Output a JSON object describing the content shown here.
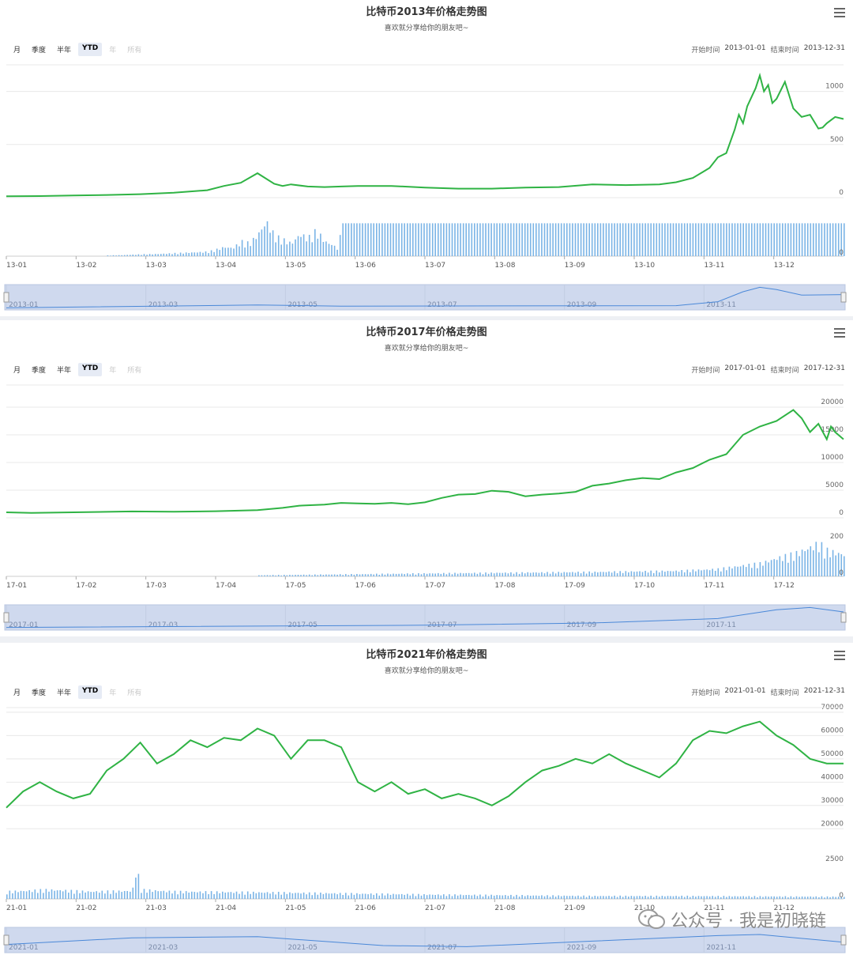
{
  "watermark": "公众号 · 我是初晓链",
  "colors": {
    "price": "#2fb344",
    "volume": "#7ab4e6",
    "navigator_fill": "#cfd9ee",
    "navigator_line": "#4a88d8",
    "grid": "#e8e8e8"
  },
  "panels": [
    {
      "title": "比特币2013年价格走势图",
      "subtitle": "喜欢就分享给你的朋友吧~",
      "range_buttons": [
        "月",
        "季度",
        "半年",
        "YTD",
        "年",
        "所有"
      ],
      "selected_range": "YTD",
      "start_label": "开始时间",
      "start_value": "2013-01-01",
      "end_label": "结束时间",
      "end_value": "2013-12-31",
      "menu_icon": "hamburger-menu-icon",
      "chart_data": {
        "type": "line",
        "title": "比特币2013年价格走势图",
        "x_ticks": [
          "13-01",
          "13-02",
          "13-03",
          "13-04",
          "13-05",
          "13-06",
          "13-07",
          "13-08",
          "13-09",
          "13-10",
          "13-11",
          "13-12"
        ],
        "navigator_ticks": [
          "2013-01",
          "2013-03",
          "2013-05",
          "2013-07",
          "2013-09",
          "2013-11"
        ],
        "price_ticks": [
          "0",
          "500",
          "1000"
        ],
        "price_ylim": [
          0,
          1250
        ],
        "volume_ticks": [
          "0"
        ],
        "price": {
          "t": [
            0,
            0.04,
            0.08,
            0.12,
            0.16,
            0.2,
            0.24,
            0.26,
            0.28,
            0.3,
            0.32,
            0.33,
            0.34,
            0.36,
            0.38,
            0.4,
            0.42,
            0.46,
            0.5,
            0.54,
            0.58,
            0.62,
            0.66,
            0.7,
            0.74,
            0.78,
            0.8,
            0.82,
            0.84,
            0.85,
            0.86,
            0.87,
            0.875,
            0.88,
            0.885,
            0.895,
            0.9,
            0.905,
            0.91,
            0.915,
            0.92,
            0.93,
            0.94,
            0.95,
            0.96,
            0.97,
            0.975,
            0.98,
            0.99,
            1
          ],
          "v": [
            13,
            15,
            20,
            25,
            33,
            47,
            70,
            110,
            140,
            230,
            130,
            110,
            125,
            105,
            100,
            105,
            110,
            110,
            95,
            85,
            85,
            95,
            100,
            125,
            118,
            125,
            145,
            185,
            280,
            380,
            420,
            640,
            780,
            700,
            860,
            1030,
            1150,
            1000,
            1060,
            890,
            930,
            1090,
            840,
            760,
            780,
            650,
            660,
            700,
            760,
            740
          ]
        },
        "volume": {
          "t": [
            0.12,
            0.14,
            0.16,
            0.18,
            0.2,
            0.22,
            0.24,
            0.25,
            0.26,
            0.27,
            0.28,
            0.29,
            0.3,
            0.31,
            0.32,
            0.33,
            0.34,
            0.35,
            0.36,
            0.37,
            0.38,
            0.39,
            0.395,
            0.4
          ],
          "v": [
            0.02,
            0.03,
            0.05,
            0.06,
            0.08,
            0.1,
            0.12,
            0.18,
            0.25,
            0.22,
            0.4,
            0.35,
            0.6,
            0.95,
            0.55,
            0.45,
            0.35,
            0.6,
            0.5,
            0.7,
            0.4,
            0.3,
            0.2,
            0.75
          ],
          "full_from": 0.4,
          "full_level": 0.8,
          "ylim": [
            0,
            1
          ]
        },
        "navigator": {
          "t": [
            0,
            0.3,
            0.4,
            0.8,
            0.85,
            0.88,
            0.9,
            0.92,
            0.95,
            1
          ],
          "v": [
            0.02,
            0.15,
            0.1,
            0.12,
            0.3,
            0.75,
            0.95,
            0.85,
            0.6,
            0.62
          ]
        }
      }
    },
    {
      "title": "比特币2017年价格走势图",
      "subtitle": "喜欢就分享给你的朋友吧~",
      "range_buttons": [
        "月",
        "季度",
        "半年",
        "YTD",
        "年",
        "所有"
      ],
      "selected_range": "YTD",
      "start_label": "开始时间",
      "start_value": "2017-01-01",
      "end_label": "结束时间",
      "end_value": "2017-12-31",
      "menu_icon": "hamburger-menu-icon",
      "chart_data": {
        "type": "line",
        "title": "比特币2017年价格走势图",
        "x_ticks": [
          "17-01",
          "17-02",
          "17-03",
          "17-04",
          "17-05",
          "17-06",
          "17-07",
          "17-08",
          "17-09",
          "17-10",
          "17-11",
          "17-12"
        ],
        "navigator_ticks": [
          "2017-01",
          "2017-03",
          "2017-05",
          "2017-07",
          "2017-09",
          "2017-11"
        ],
        "price_ticks": [
          "0",
          "5000",
          "10000",
          "15000",
          "20000"
        ],
        "price_ylim": [
          0,
          24000
        ],
        "volume_ticks": [
          "0",
          "200"
        ],
        "price": {
          "t": [
            0,
            0.03,
            0.08,
            0.15,
            0.2,
            0.25,
            0.3,
            0.33,
            0.35,
            0.38,
            0.4,
            0.42,
            0.44,
            0.46,
            0.48,
            0.5,
            0.52,
            0.54,
            0.56,
            0.58,
            0.6,
            0.62,
            0.64,
            0.66,
            0.68,
            0.7,
            0.72,
            0.74,
            0.76,
            0.78,
            0.8,
            0.82,
            0.84,
            0.86,
            0.88,
            0.9,
            0.92,
            0.94,
            0.95,
            0.96,
            0.97,
            0.98,
            0.985,
            0.99,
            1
          ],
          "v": [
            1000,
            900,
            1000,
            1150,
            1100,
            1200,
            1400,
            1800,
            2200,
            2400,
            2700,
            2600,
            2550,
            2700,
            2450,
            2800,
            3600,
            4200,
            4300,
            4900,
            4700,
            3900,
            4200,
            4400,
            4700,
            5800,
            6200,
            6800,
            7200,
            7000,
            8200,
            9000,
            10500,
            11500,
            15000,
            16500,
            17500,
            19500,
            18000,
            15500,
            17000,
            14200,
            16500,
            15500,
            14200
          ]
        },
        "volume": {
          "t": [
            0.3,
            0.5,
            0.6,
            0.7,
            0.8,
            0.85,
            0.88,
            0.9,
            0.92,
            0.94,
            0.96,
            0.97,
            0.98,
            0.99,
            1
          ],
          "v": [
            0.03,
            0.08,
            0.1,
            0.12,
            0.15,
            0.2,
            0.3,
            0.35,
            0.5,
            0.6,
            0.8,
            0.9,
            0.7,
            0.65,
            0.6
          ],
          "full_from": 2,
          "full_level": 0,
          "ylim": [
            0,
            1
          ]
        },
        "navigator": {
          "t": [
            0,
            0.5,
            0.7,
            0.85,
            0.92,
            0.96,
            1
          ],
          "v": [
            0.05,
            0.15,
            0.25,
            0.45,
            0.85,
            0.95,
            0.75
          ]
        }
      }
    },
    {
      "title": "比特币2021年价格走势图",
      "subtitle": "喜欢就分享给你的朋友吧~",
      "range_buttons": [
        "月",
        "季度",
        "半年",
        "YTD",
        "年",
        "所有"
      ],
      "selected_range": "YTD",
      "start_label": "开始时间",
      "start_value": "2021-01-01",
      "end_label": "结束时间",
      "end_value": "2021-12-31",
      "menu_icon": "hamburger-menu-icon",
      "chart_data": {
        "type": "line",
        "title": "比特币2021年价格走势图",
        "x_ticks": [
          "21-01",
          "21-02",
          "21-03",
          "21-04",
          "21-05",
          "21-06",
          "21-07",
          "21-08",
          "21-09",
          "21-10",
          "21-11",
          "21-12"
        ],
        "navigator_ticks": [
          "2021-01",
          "2021-03",
          "2021-05",
          "2021-07",
          "2021-09",
          "2021-11"
        ],
        "price_ticks": [
          "20000",
          "30000",
          "40000",
          "50000",
          "60000",
          "70000"
        ],
        "price_ylim": [
          15000,
          72000
        ],
        "volume_ticks": [
          "0",
          "2500"
        ],
        "price": {
          "t": [
            0,
            0.02,
            0.04,
            0.06,
            0.08,
            0.1,
            0.12,
            0.14,
            0.16,
            0.18,
            0.2,
            0.22,
            0.24,
            0.26,
            0.28,
            0.3,
            0.32,
            0.34,
            0.36,
            0.38,
            0.4,
            0.42,
            0.44,
            0.46,
            0.48,
            0.5,
            0.52,
            0.54,
            0.56,
            0.58,
            0.6,
            0.62,
            0.64,
            0.66,
            0.68,
            0.7,
            0.72,
            0.74,
            0.76,
            0.78,
            0.8,
            0.82,
            0.84,
            0.86,
            0.88,
            0.9,
            0.92,
            0.94,
            0.96,
            0.98,
            1
          ],
          "v": [
            29000,
            36000,
            40000,
            36000,
            33000,
            35000,
            45000,
            50000,
            57000,
            48000,
            52000,
            58000,
            55000,
            59000,
            58000,
            63000,
            60000,
            50000,
            58000,
            58000,
            55000,
            40000,
            36000,
            40000,
            35000,
            37000,
            33000,
            35000,
            33000,
            30000,
            34000,
            40000,
            45000,
            47000,
            50000,
            48000,
            52000,
            48000,
            45000,
            42000,
            48000,
            58000,
            62000,
            61000,
            64000,
            66000,
            60000,
            56000,
            50000,
            48000,
            48000
          ]
        },
        "volume": {
          "t": [
            0,
            0.05,
            0.1,
            0.15,
            0.155,
            0.16,
            0.2,
            0.3,
            0.4,
            0.5,
            0.6,
            0.7,
            0.8,
            0.9,
            1
          ],
          "v": [
            0.2,
            0.25,
            0.2,
            0.22,
            0.9,
            0.25,
            0.2,
            0.18,
            0.15,
            0.12,
            0.1,
            0.08,
            0.08,
            0.07,
            0.06
          ],
          "full_from": 2,
          "full_level": 0,
          "ylim": [
            0,
            1
          ]
        },
        "navigator": {
          "t": [
            0,
            0.15,
            0.3,
            0.45,
            0.55,
            0.7,
            0.85,
            0.9,
            1
          ],
          "v": [
            0.3,
            0.6,
            0.65,
            0.25,
            0.2,
            0.45,
            0.7,
            0.75,
            0.4
          ]
        }
      }
    }
  ]
}
